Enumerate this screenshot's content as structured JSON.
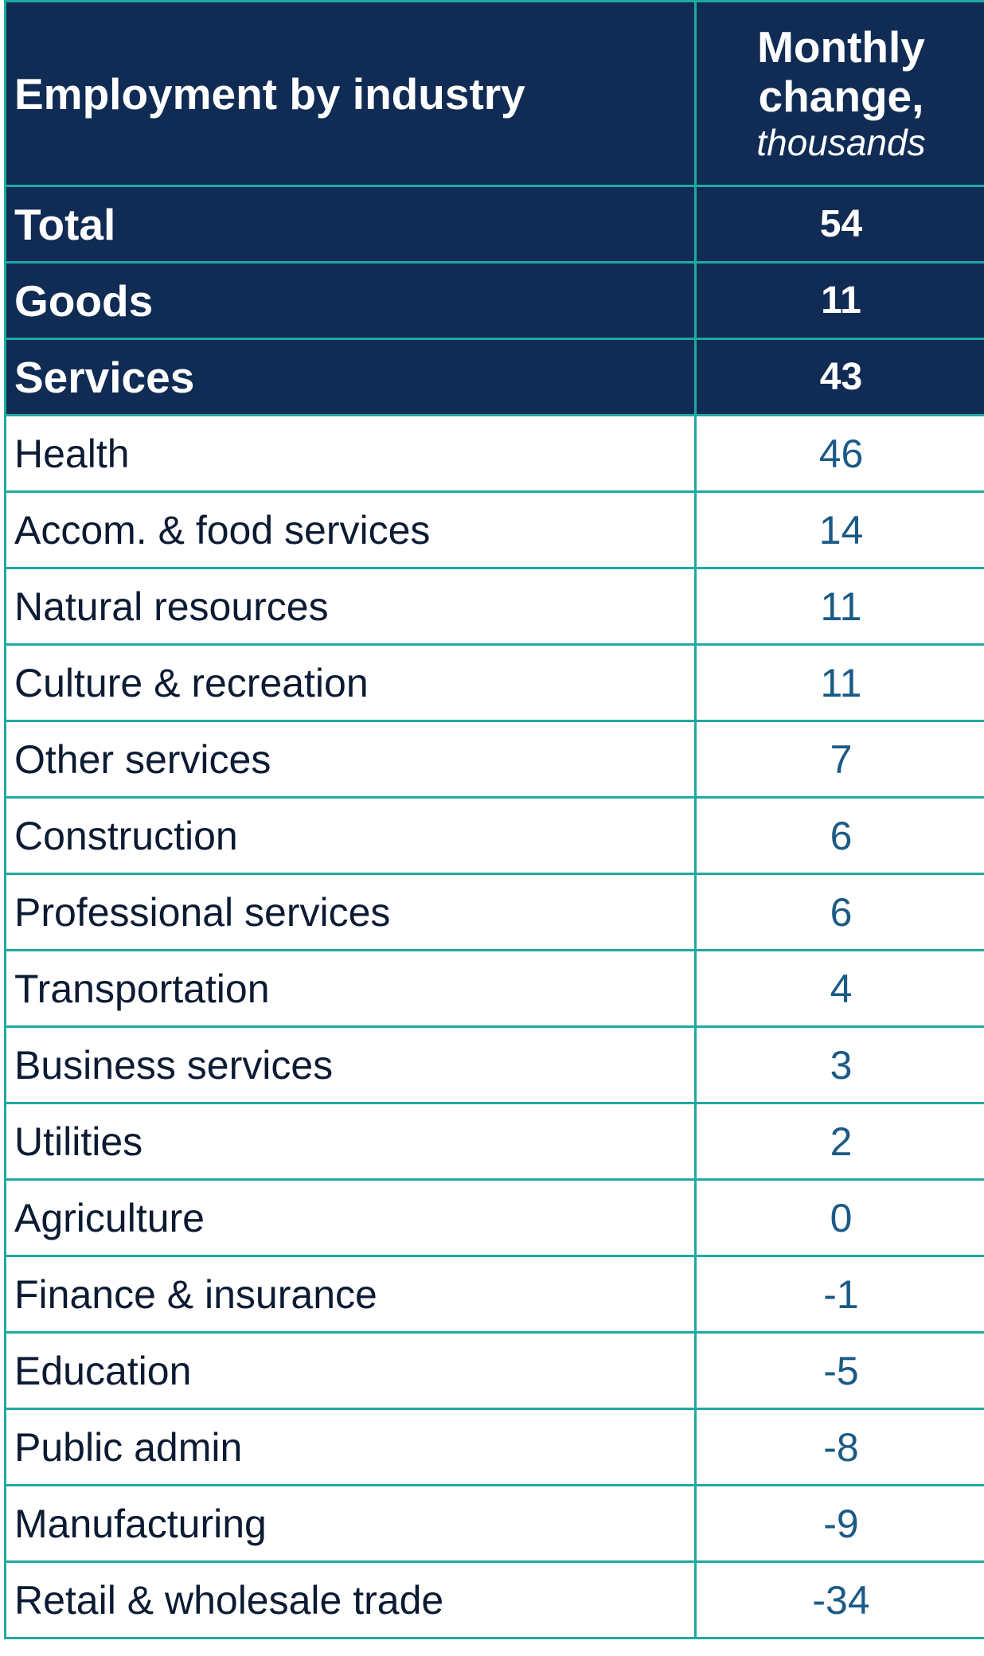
{
  "header": {
    "industry_label": "Employment by industry",
    "change_label_line1": "Monthly",
    "change_label_line2": "change,",
    "change_unit": "thousands"
  },
  "colors": {
    "header_bg": "#102c55",
    "border": "#1fa9a0",
    "value_text": "#1b5a86",
    "label_text": "#0c1b33"
  },
  "chart_data": {
    "type": "table",
    "columns": [
      "Employment by industry",
      "Monthly change, thousands"
    ],
    "summary_rows": [
      {
        "industry": "Total",
        "change": 54
      },
      {
        "industry": "Goods",
        "change": 11
      },
      {
        "industry": "Services",
        "change": 43
      }
    ],
    "rows": [
      {
        "industry": "Health",
        "change": 46
      },
      {
        "industry": "Accom. & food services",
        "change": 14
      },
      {
        "industry": "Natural resources",
        "change": 11
      },
      {
        "industry": "Culture & recreation",
        "change": 11
      },
      {
        "industry": "Other services",
        "change": 7
      },
      {
        "industry": "Construction",
        "change": 6
      },
      {
        "industry": "Professional services",
        "change": 6
      },
      {
        "industry": "Transportation",
        "change": 4
      },
      {
        "industry": "Business services",
        "change": 3
      },
      {
        "industry": "Utilities",
        "change": 2
      },
      {
        "industry": "Agriculture",
        "change": 0
      },
      {
        "industry": "Finance & insurance",
        "change": -1
      },
      {
        "industry": "Education",
        "change": -5
      },
      {
        "industry": "Public admin",
        "change": -8
      },
      {
        "industry": "Manufacturing",
        "change": -9
      },
      {
        "industry": "Retail & wholesale trade",
        "change": -34
      }
    ]
  }
}
